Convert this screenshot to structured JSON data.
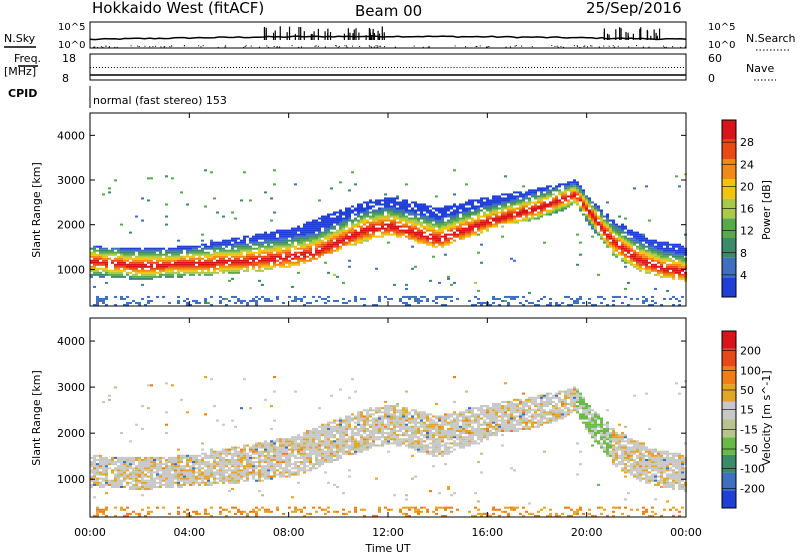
{
  "header": {
    "title": "Hokkaido West (fitACF)",
    "beam": "Beam 00",
    "date": "25/Sep/2016"
  },
  "noise_panel": {
    "left_label": "N.Sky",
    "right_label": "N.Search",
    "left_ticks": [
      "10^5",
      "10^0"
    ],
    "right_ticks": [
      "10^5",
      "10^0"
    ]
  },
  "freq_panel": {
    "left_label": "Freq.",
    "left_unit": "[MHz]",
    "right_label": "Nave",
    "left_ticks": [
      "18",
      "8"
    ],
    "right_ticks": [
      "60",
      "0"
    ]
  },
  "cpid_panel": {
    "label": "CPID",
    "text": "normal (fast stereo) 153"
  },
  "colors": {
    "power_scale": [
      "#1f3fd6",
      "#3e6fc0",
      "#3b8a6a",
      "#58a94b",
      "#a8c94a",
      "#f2c40f",
      "#f08a16",
      "#e94a14",
      "#d8141a"
    ],
    "velocity_scale": [
      "#1f3fd6",
      "#3e6fc0",
      "#3b8a6a",
      "#69b947",
      "#b7c48f",
      "#c8c8c8",
      "#e3a524",
      "#ef7e14",
      "#e84717",
      "#d8141a"
    ]
  },
  "chart_data": [
    {
      "type": "heatmap",
      "title": "",
      "xlabel": "",
      "ylabel": "Slant Range [km]",
      "colorbar_label": "Power [dB]",
      "colorbar_ticks": [
        4,
        8,
        12,
        16,
        20,
        24,
        28
      ],
      "colorbar_range": [
        0,
        30
      ],
      "ylim": [
        180,
        4500
      ],
      "y_ticks": [
        1000,
        2000,
        3000,
        4000
      ],
      "xlim": [
        0,
        24
      ],
      "note_shape": "main echo band in slant range (km) vs UT hour",
      "band": {
        "x": [
          0,
          2,
          4,
          6,
          8,
          9,
          10,
          11,
          12,
          13,
          14,
          15,
          16,
          17,
          18,
          19,
          19.5,
          20,
          21,
          22,
          23,
          24
        ],
        "lower": [
          800,
          750,
          820,
          900,
          1000,
          1200,
          1400,
          1600,
          1750,
          1600,
          1450,
          1650,
          1850,
          2000,
          2100,
          2300,
          2450,
          2000,
          1300,
          950,
          800,
          700
        ],
        "upper": [
          1500,
          1450,
          1500,
          1700,
          1900,
          2100,
          2300,
          2500,
          2600,
          2500,
          2350,
          2500,
          2600,
          2700,
          2800,
          2900,
          3000,
          2600,
          2100,
          1800,
          1600,
          1500
        ],
        "peak": [
          1150,
          1050,
          1100,
          1150,
          1250,
          1350,
          1600,
          1850,
          1950,
          1800,
          1650,
          1850,
          2050,
          2200,
          2350,
          2550,
          2650,
          2300,
          1600,
          1200,
          1000,
          900
        ]
      }
    },
    {
      "type": "heatmap",
      "title": "",
      "xlabel": "Time UT",
      "ylabel": "Slant Range [km]",
      "colorbar_label": "Velocity [m s^-1]",
      "colorbar_ticks": [
        -200,
        -100,
        -50,
        -15,
        15,
        50,
        100,
        200
      ],
      "ylim": [
        180,
        4500
      ],
      "y_ticks": [
        1000,
        2000,
        3000,
        4000
      ],
      "xlim": [
        0,
        24
      ],
      "x_ticks": [
        "00:00",
        "04:00",
        "08:00",
        "12:00",
        "16:00",
        "20:00",
        "00:00"
      ]
    }
  ]
}
